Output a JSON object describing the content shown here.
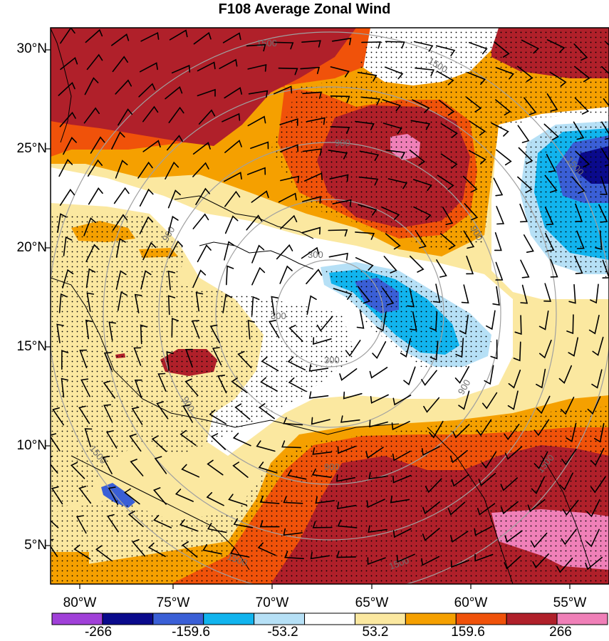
{
  "title": "F108 Average Zonal Wind",
  "lat_labels": [
    "30°N",
    "25°N",
    "20°N",
    "15°N",
    "10°N",
    "5°N"
  ],
  "lon_labels": [
    "80°W",
    "75°W",
    "70°W",
    "65°W",
    "60°W",
    "55°W"
  ],
  "colorbar": {
    "colors": [
      "#a040d8",
      "#0a0a8c",
      "#3a5fd6",
      "#11b4ee",
      "#b6e0f6",
      "#ffffff",
      "#fbe8a0",
      "#f5a000",
      "#f0520a",
      "#b0202a",
      "#f080b8"
    ],
    "labels": [
      "-266",
      "-159.6",
      "-53.2",
      "53.2",
      "159.6",
      "266"
    ]
  },
  "contour_labels": [
    "300",
    "300",
    "300",
    "900",
    "900",
    "900",
    "900",
    "900",
    "900",
    "1500",
    "1500",
    "1500",
    "1500",
    "1500",
    "1500",
    "1500"
  ]
}
